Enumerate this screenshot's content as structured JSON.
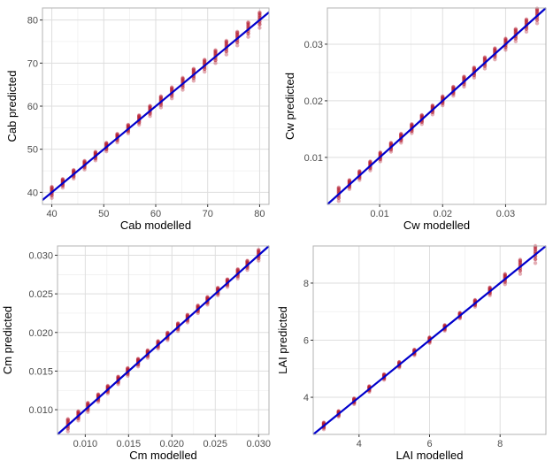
{
  "chart_data": [
    {
      "type": "scatter",
      "xlabel": "Cab modelled",
      "ylabel": "Cab predicted",
      "xlim": [
        38.2,
        81.8
      ],
      "ylim": [
        37.2,
        82.8
      ],
      "xticks": [
        40,
        50,
        60,
        70,
        80
      ],
      "xtick_labels": [
        "40",
        "50",
        "60",
        "70",
        "80"
      ],
      "yticks": [
        40,
        50,
        60,
        70,
        80
      ],
      "ytick_labels": [
        "40",
        "50",
        "60",
        "70",
        "80"
      ],
      "x_levels": [
        40,
        42.1,
        44.2,
        46.3,
        48.4,
        50.5,
        52.6,
        54.7,
        56.8,
        58.9,
        61.0,
        63.1,
        65.2,
        67.3,
        69.4,
        71.5,
        73.6,
        75.7,
        77.8,
        80.0
      ],
      "spread": [
        1.3,
        1.0,
        1.0,
        1.0,
        1.0,
        1.0,
        1.0,
        1.0,
        1.1,
        1.2,
        1.3,
        1.3,
        1.4,
        1.4,
        1.4,
        1.5,
        1.6,
        1.6,
        1.7,
        1.8
      ],
      "fit_line": [
        [
          38.2,
          38.2
        ],
        [
          81.8,
          81.8
        ]
      ],
      "point_color": "#b2182b",
      "line_color": "#0000cc",
      "grid": true
    },
    {
      "type": "scatter",
      "xlabel": "Cw modelled",
      "ylabel": "Cw predicted",
      "xlim": [
        0.0017,
        0.0364
      ],
      "ylim": [
        0.0017,
        0.0364
      ],
      "xticks": [
        0.01,
        0.02,
        0.03
      ],
      "xtick_labels": [
        "0.01",
        "0.02",
        "0.03"
      ],
      "yticks": [
        0.01,
        0.02,
        0.03
      ],
      "ytick_labels": [
        "0.01",
        "0.02",
        "0.03"
      ],
      "x_levels": [
        0.0035,
        0.0052,
        0.0068,
        0.0085,
        0.0101,
        0.0118,
        0.0134,
        0.0151,
        0.0167,
        0.0184,
        0.02,
        0.0217,
        0.0234,
        0.025,
        0.0267,
        0.0283,
        0.03,
        0.0316,
        0.0333,
        0.035
      ],
      "spread": [
        0.0012,
        0.0008,
        0.0008,
        0.0008,
        0.0008,
        0.0008,
        0.0008,
        0.0008,
        0.0008,
        0.0008,
        0.0008,
        0.0008,
        0.0009,
        0.0009,
        0.001,
        0.001,
        0.001,
        0.0011,
        0.0011,
        0.0013
      ],
      "fit_line": [
        [
          0.0017,
          0.0017
        ],
        [
          0.0364,
          0.0364
        ]
      ],
      "point_color": "#b2182b",
      "line_color": "#0000cc",
      "grid": true
    },
    {
      "type": "scatter",
      "xlabel": "Cm modelled",
      "ylabel": "Cm predicted",
      "xlim": [
        0.0068,
        0.0312
      ],
      "ylim": [
        0.0068,
        0.0312
      ],
      "xticks": [
        0.01,
        0.015,
        0.02,
        0.025,
        0.03
      ],
      "xtick_labels": [
        "0.010",
        "0.015",
        "0.020",
        "0.025",
        "0.030"
      ],
      "yticks": [
        0.01,
        0.015,
        0.02,
        0.025,
        0.03
      ],
      "ytick_labels": [
        "0.010",
        "0.015",
        "0.020",
        "0.025",
        "0.030"
      ],
      "x_levels": [
        0.008,
        0.0092,
        0.0103,
        0.0115,
        0.0126,
        0.0138,
        0.0149,
        0.0161,
        0.0172,
        0.0184,
        0.0195,
        0.0207,
        0.0218,
        0.023,
        0.0241,
        0.0253,
        0.0264,
        0.0276,
        0.0287,
        0.03
      ],
      "spread": [
        0.0008,
        0.0006,
        0.0006,
        0.0005,
        0.0005,
        0.0005,
        0.0005,
        0.0005,
        0.0005,
        0.0005,
        0.0005,
        0.0005,
        0.0005,
        0.0005,
        0.0005,
        0.0005,
        0.0005,
        0.0006,
        0.0006,
        0.0007
      ],
      "fit_line": [
        [
          0.0068,
          0.0068
        ],
        [
          0.0312,
          0.0312
        ]
      ],
      "point_color": "#b2182b",
      "line_color": "#0000cc",
      "grid": true
    },
    {
      "type": "scatter",
      "xlabel": "LAI modelled",
      "ylabel": "LAI predicted",
      "xlim": [
        2.7,
        9.3
      ],
      "ylim": [
        2.7,
        9.3
      ],
      "xticks": [
        4,
        6,
        8
      ],
      "xtick_labels": [
        "4",
        "6",
        "8"
      ],
      "yticks": [
        4,
        6,
        8
      ],
      "ytick_labels": [
        "4",
        "6",
        "8"
      ],
      "x_levels": [
        3.0,
        3.42,
        3.86,
        4.29,
        4.71,
        5.14,
        5.57,
        6.0,
        6.43,
        6.86,
        7.29,
        7.71,
        8.14,
        8.57,
        9.0
      ],
      "spread": [
        0.12,
        0.1,
        0.1,
        0.1,
        0.1,
        0.1,
        0.1,
        0.1,
        0.1,
        0.1,
        0.12,
        0.14,
        0.18,
        0.25,
        0.3
      ],
      "fit_line": [
        [
          2.7,
          2.7
        ],
        [
          9.3,
          9.3
        ]
      ],
      "point_color": "#b2182b",
      "line_color": "#0000cc",
      "grid": true
    }
  ]
}
